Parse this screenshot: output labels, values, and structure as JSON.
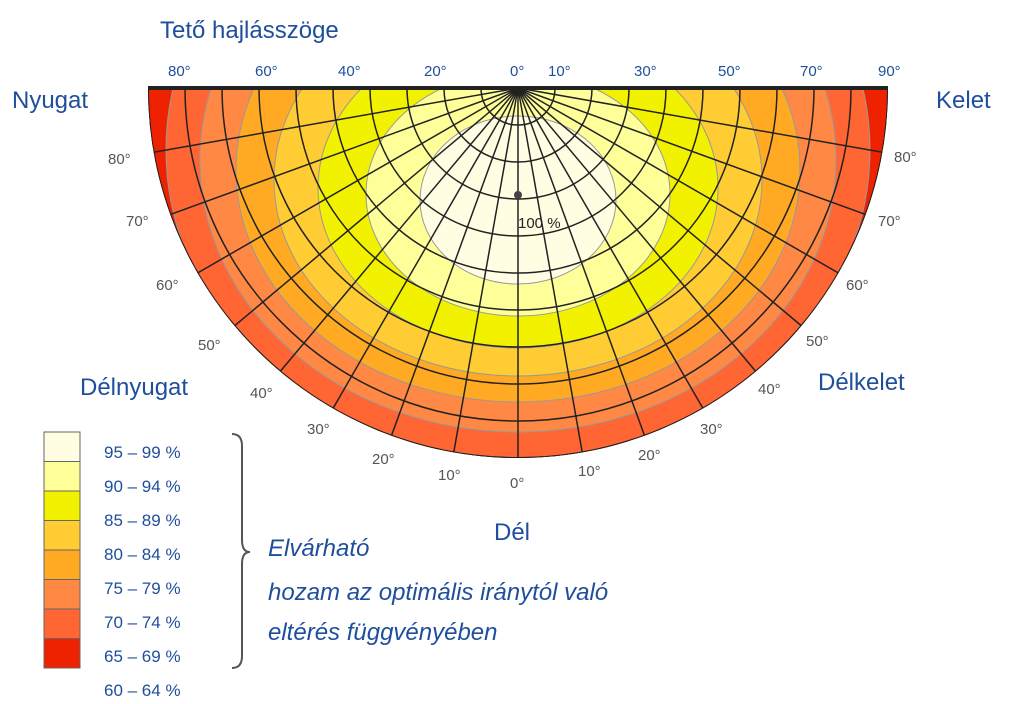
{
  "title": "Tető hajlásszöge",
  "top_ticks": [
    "80°",
    "60°",
    "40°",
    "20°",
    "0°",
    "10°",
    "30°",
    "50°",
    "70°",
    "90°"
  ],
  "left_ticks": [
    "80°",
    "70°",
    "60°",
    "50°",
    "40°",
    "30°",
    "20°",
    "10°",
    "0°"
  ],
  "right_ticks": [
    "80°",
    "70°",
    "60°",
    "50°",
    "40°",
    "30°",
    "20°",
    "10°"
  ],
  "directions": {
    "west": "Nyugat",
    "east": "Kelet",
    "southwest": "Délnyugat",
    "southeast": "Délkelet",
    "south": "Dél"
  },
  "center_label": "100 %",
  "legend": {
    "labels": [
      "95 – 99 %",
      "90 – 94 %",
      "85 – 89 %",
      "80 – 84 %",
      "75 – 79 %",
      "70 – 74 %",
      "65 – 69 %",
      "60 – 64 %"
    ],
    "colors": [
      "#fffde2",
      "#ffff9a",
      "#f2f200",
      "#ffcc33",
      "#ffaa22",
      "#ff8844",
      "#ff6633",
      "#ee2200"
    ]
  },
  "caption": [
    "Elvárható",
    "hozam az optimális iránytól való",
    "eltérés függvényében"
  ]
}
